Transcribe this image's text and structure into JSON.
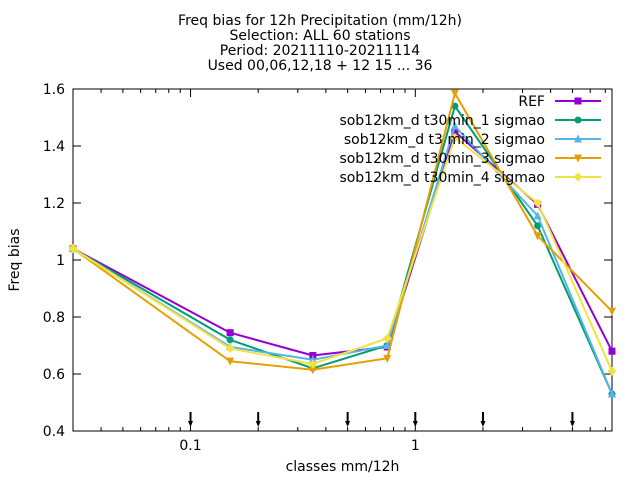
{
  "chart_data": {
    "type": "line",
    "title_lines": [
      "Freq bias  for 12h Precipitation (mm/12h)",
      "Selection: ALL     60 stations",
      "Period: 20211110-20211114",
      "Used 00,06,12,18 + 12 15 ... 36"
    ],
    "xlabel": "classes mm/12h",
    "ylabel": "Freq bias",
    "x_scale": "log",
    "xlim": [
      0.03,
      7.5
    ],
    "ylim": [
      0.4,
      1.6
    ],
    "y_ticks": [
      "0.4",
      "0.6",
      "0.8",
      "1",
      "1.2",
      "1.4",
      "1.6"
    ],
    "x_tick_labels": [
      {
        "value": 0.1,
        "label": "0.1"
      },
      {
        "value": 1,
        "label": "1"
      }
    ],
    "x_minor_ticks": [
      0.04,
      0.05,
      0.06,
      0.07,
      0.08,
      0.09,
      0.2,
      0.3,
      0.4,
      0.5,
      0.6,
      0.7,
      0.8,
      0.9,
      2,
      3,
      4,
      5,
      6,
      7
    ],
    "threshold_markers": [
      0.1,
      0.2,
      0.5,
      1,
      2,
      5
    ],
    "legend_position": "top-right",
    "grid": false,
    "x": [
      0.03,
      0.15,
      0.35,
      0.75,
      1.5,
      3.5,
      7.5
    ],
    "series": [
      {
        "name": "REF",
        "color": "#9400d3",
        "marker": "square",
        "values": [
          1.04,
          0.745,
          0.665,
          0.695,
          1.45,
          1.195,
          0.68
        ]
      },
      {
        "name": "sob12km_d t30min_1 sigmao",
        "color": "#009e73",
        "marker": "circle",
        "values": [
          1.04,
          0.72,
          0.62,
          0.7,
          1.54,
          1.12,
          0.53
        ]
      },
      {
        "name": "sob12km_d t3 min_2 sigmao",
        "color": "#56b4e9",
        "marker": "triangle",
        "values": [
          1.04,
          0.695,
          0.65,
          0.7,
          1.47,
          1.155,
          0.53
        ]
      },
      {
        "name": "sob12km_d t30min_3 sigmao",
        "color": "#e69f00",
        "marker": "triangle-down",
        "values": [
          1.04,
          0.645,
          0.615,
          0.655,
          1.585,
          1.085,
          0.82
        ]
      },
      {
        "name": "sob12km_d t30min_4 sigmao",
        "color": "#f0e442",
        "marker": "diamond",
        "values": [
          1.04,
          0.69,
          0.635,
          0.725,
          1.43,
          1.2,
          0.61
        ]
      }
    ]
  }
}
